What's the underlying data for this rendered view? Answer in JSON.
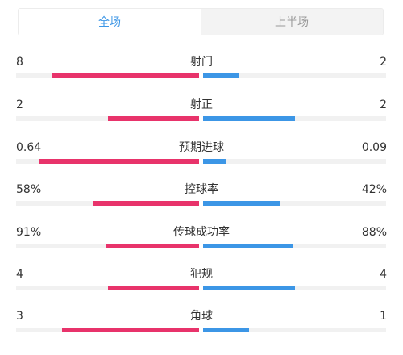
{
  "tabs": [
    {
      "label": "全场",
      "active": true
    },
    {
      "label": "上半场",
      "active": false
    }
  ],
  "colors": {
    "home": "#e8336b",
    "away": "#3c96e6",
    "track": "#f1f1f1"
  },
  "stats": [
    {
      "name": "射门",
      "home": "8",
      "away": "2",
      "home_ratio": 0.8,
      "away_ratio": 0.2
    },
    {
      "name": "射正",
      "home": "2",
      "away": "2",
      "home_ratio": 0.5,
      "away_ratio": 0.5
    },
    {
      "name": "预期进球",
      "home": "0.64",
      "away": "0.09",
      "home_ratio": 0.877,
      "away_ratio": 0.123
    },
    {
      "name": "控球率",
      "home": "58%",
      "away": "42%",
      "home_ratio": 0.58,
      "away_ratio": 0.42
    },
    {
      "name": "传球成功率",
      "home": "91%",
      "away": "88%",
      "home_ratio": 0.508,
      "away_ratio": 0.492
    },
    {
      "name": "犯规",
      "home": "4",
      "away": "4",
      "home_ratio": 0.5,
      "away_ratio": 0.5
    },
    {
      "name": "角球",
      "home": "3",
      "away": "1",
      "home_ratio": 0.75,
      "away_ratio": 0.25
    }
  ]
}
